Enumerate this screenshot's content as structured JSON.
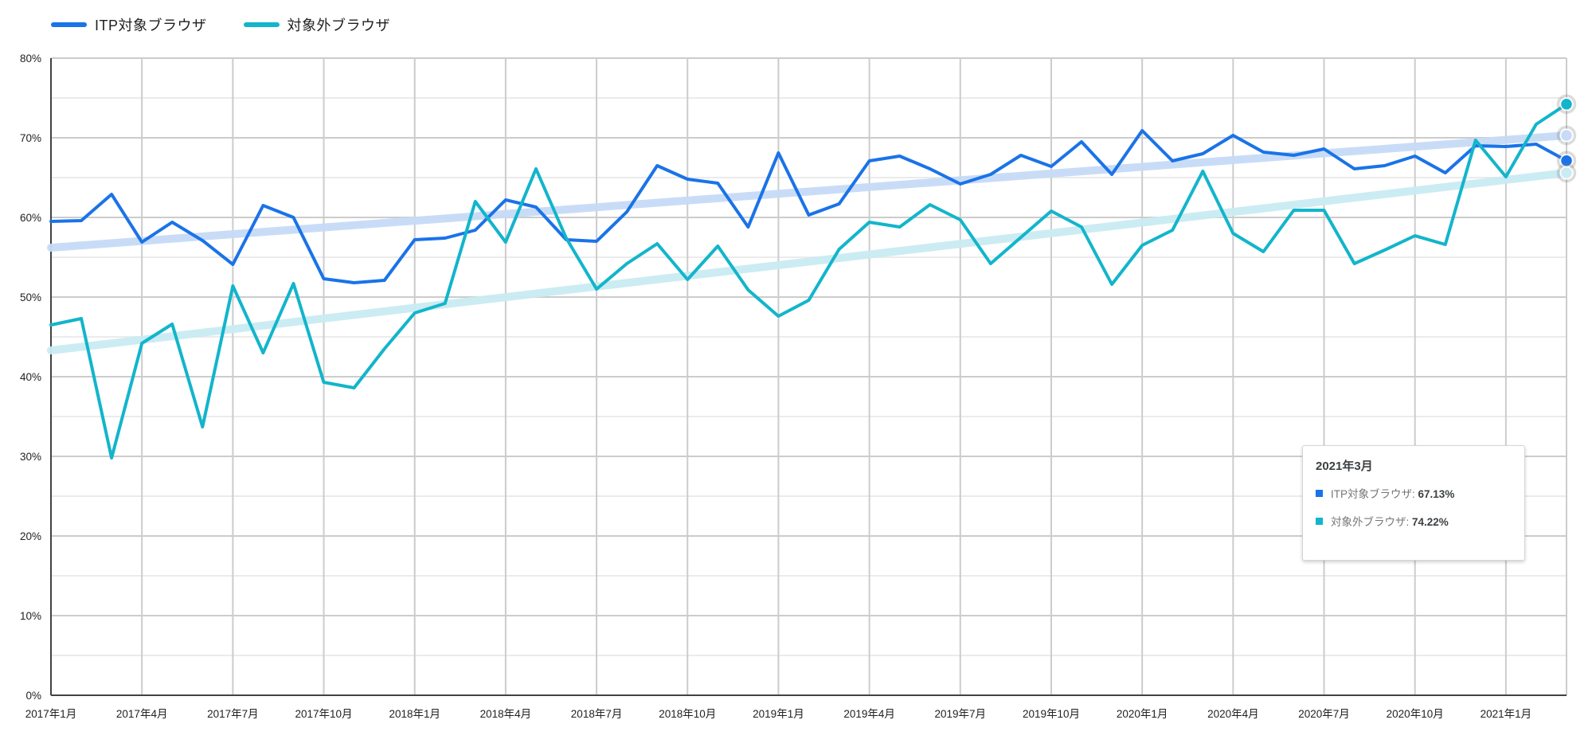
{
  "legend": {
    "position": "top-left",
    "series": [
      {
        "label": "ITP対象ブラウザ",
        "color": "#1a73e8"
      },
      {
        "label": "対象外ブラウザ",
        "color": "#12b5cb"
      }
    ]
  },
  "tooltip": {
    "title": "2021年3月",
    "rows": [
      {
        "label": "ITP対象ブラウザ",
        "separator": ": ",
        "value": "67.13%",
        "color": "#1a73e8"
      },
      {
        "label": "対象外ブラウザ",
        "separator": ": ",
        "value": "74.22%",
        "color": "#12b5cb"
      }
    ]
  },
  "chart_data": {
    "type": "line",
    "title": "",
    "xlabel": "",
    "ylabel": "",
    "x_start": "2017年1月",
    "x_end": "2021年3月",
    "x_step": "1 month",
    "n_points": 51,
    "ylim": [
      0,
      80
    ],
    "y_major_step": 10,
    "y_minor_step": 5,
    "grid": true,
    "y_tick_labels": [
      "0%",
      "10%",
      "20%",
      "30%",
      "40%",
      "50%",
      "60%",
      "70%",
      "80%"
    ],
    "x_tick_labels": [
      "2017年1月",
      "2017年4月",
      "2017年7月",
      "2017年10月",
      "2018年1月",
      "2018年4月",
      "2018年7月",
      "2018年10月",
      "2019年1月",
      "2019年4月",
      "2019年7月",
      "2019年10月",
      "2020年1月",
      "2020年4月",
      "2020年7月",
      "2020年10月",
      "2021年1月"
    ],
    "x_tick_month_indices": [
      0,
      3,
      6,
      9,
      12,
      15,
      18,
      21,
      24,
      27,
      30,
      33,
      36,
      39,
      42,
      45,
      48
    ],
    "series": [
      {
        "name": "ITP対象ブラウザ",
        "color": "#1a73e8",
        "values": [
          59.5,
          59.6,
          62.9,
          56.9,
          59.4,
          57.1,
          54.1,
          61.5,
          60.0,
          52.3,
          51.8,
          52.1,
          57.2,
          57.4,
          58.4,
          62.2,
          61.3,
          57.2,
          57.0,
          60.7,
          66.5,
          64.8,
          64.3,
          58.8,
          68.1,
          60.3,
          61.7,
          67.1,
          67.7,
          66.1,
          64.2,
          65.4,
          67.8,
          66.4,
          69.5,
          65.4,
          70.9,
          67.1,
          68.0,
          70.3,
          68.2,
          67.8,
          68.6,
          66.1,
          66.5,
          67.7,
          65.6,
          69.0,
          68.9,
          69.2,
          67.13
        ]
      },
      {
        "name": "対象外ブラウザ",
        "color": "#12b5cb",
        "values": [
          46.5,
          47.3,
          29.8,
          44.2,
          46.6,
          33.7,
          51.4,
          43.0,
          51.7,
          39.3,
          38.6,
          43.5,
          48.0,
          49.2,
          62.0,
          56.9,
          66.1,
          57.4,
          51.0,
          54.2,
          56.7,
          52.2,
          56.4,
          50.9,
          47.6,
          49.6,
          56.0,
          59.4,
          58.8,
          61.6,
          59.7,
          54.2,
          57.5,
          60.8,
          58.8,
          51.6,
          56.5,
          58.4,
          65.8,
          58.0,
          55.7,
          60.9,
          60.9,
          54.2,
          55.9,
          57.7,
          56.6,
          69.7,
          65.1,
          71.7,
          74.22
        ]
      }
    ],
    "trendlines": [
      {
        "for": "ITP対象ブラウザ",
        "color": "#c7dbf7",
        "start_value": 56.2,
        "end_value": 70.3
      },
      {
        "for": "対象外ブラウザ",
        "color": "#c9ecf2",
        "start_value": 43.3,
        "end_value": 65.6
      }
    ],
    "end_markers": [
      {
        "name": "対象外ブラウザ最終値",
        "value": 74.22,
        "fill": "#12b5cb"
      },
      {
        "name": "ITPトレンド線終点",
        "value": 70.3,
        "fill": "#c7dbf7"
      },
      {
        "name": "ITP対象ブラウザ最終値",
        "value": 67.13,
        "fill": "#1a73e8"
      },
      {
        "name": "対象外トレンド線終点",
        "value": 65.6,
        "fill": "#c9ecf2"
      }
    ],
    "legend_position": "top-left",
    "colors": {
      "axis": "#424242",
      "grid_major": "#cccccc",
      "grid_minor": "#ebebeb",
      "tick_label": "#222222",
      "background": "#ffffff"
    }
  }
}
